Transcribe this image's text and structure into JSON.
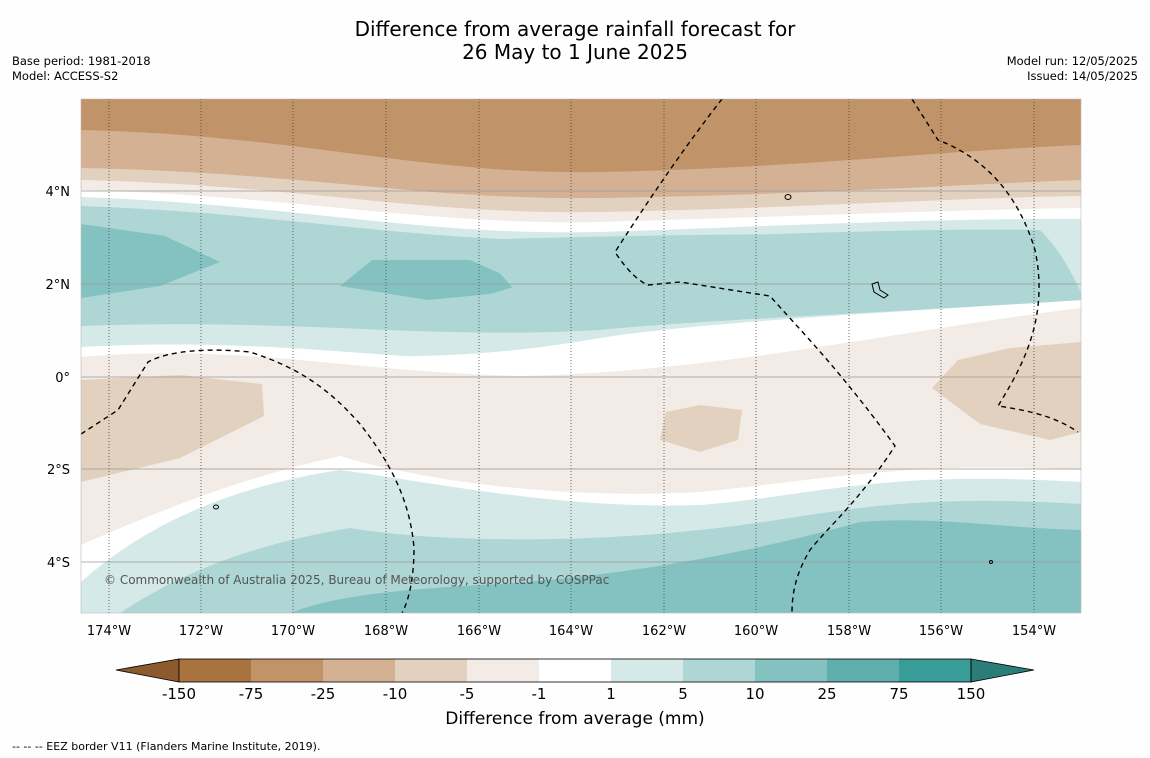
{
  "title_line1": "Difference from average rainfall forecast for",
  "title_line2": "26 May to 1 June 2025",
  "meta_left": [
    "Base period: 1981-2018",
    "Model: ACCESS-S2"
  ],
  "meta_right": [
    "Model run: 12/05/2025",
    "Issued: 14/05/2025"
  ],
  "copyright": "© Commonwealth of Australia 2025, Bureau of Meteorology, supported by COSPPac",
  "lat_labels": [
    {
      "text": "4°N",
      "lat": 4
    },
    {
      "text": "2°N",
      "lat": 2
    },
    {
      "text": "0°",
      "lat": 0
    },
    {
      "text": "2°S",
      "lat": -2
    },
    {
      "text": "4°S",
      "lat": -4
    }
  ],
  "lon_labels": [
    {
      "text": "174°W",
      "lon": -174
    },
    {
      "text": "172°W",
      "lon": -172
    },
    {
      "text": "170°W",
      "lon": -170
    },
    {
      "text": "168°W",
      "lon": -168
    },
    {
      "text": "166°W",
      "lon": -166
    },
    {
      "text": "164°W",
      "lon": -164
    },
    {
      "text": "162°W",
      "lon": -162
    },
    {
      "text": "160°W",
      "lon": -160
    },
    {
      "text": "158°W",
      "lon": -158
    },
    {
      "text": "156°W",
      "lon": -156
    },
    {
      "text": "154°W",
      "lon": -154
    }
  ],
  "colorbar": {
    "title": "Difference from average (mm)",
    "ticks": [
      "-150",
      "-75",
      "-25",
      "-10",
      "-5",
      "-1",
      "1",
      "5",
      "10",
      "25",
      "75",
      "150"
    ],
    "colors": [
      "#8b5b2e",
      "#a8733e",
      "#c09369",
      "#d4b192",
      "#e3d1c0",
      "#f3ebe5",
      "#ffffff",
      "#d5e9e8",
      "#aed6d5",
      "#84c2c1",
      "#5daeac",
      "#389c98",
      "#2b7d7a"
    ]
  },
  "legend_footer": "-- -- -- EEZ border V11 (Flanders Marine Institute, 2019)."
}
